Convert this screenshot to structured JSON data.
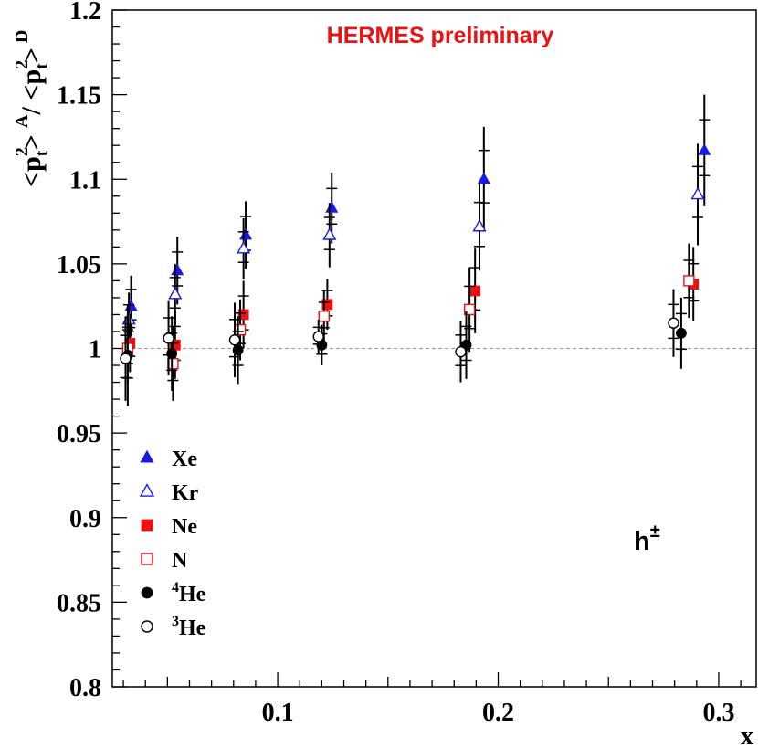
{
  "chart_data": {
    "type": "scatter",
    "title": "HERMES preliminary",
    "title_color": "#ee1111",
    "annotation": "h",
    "annotation_sup": "±",
    "ylabel": {
      "parts": [
        "<p",
        "2",
        "t",
        "> ",
        "A",
        "/ <p",
        "2",
        "t",
        ">",
        " D"
      ]
    },
    "xlabel": "x",
    "xlim": [
      0.025,
      0.317
    ],
    "ylim": [
      0.8,
      1.2
    ],
    "x_ticks": [
      {
        "value": 0.1,
        "label": "0.1"
      },
      {
        "value": 0.2,
        "label": "0.2"
      },
      {
        "value": 0.3,
        "label": "0.3"
      }
    ],
    "y_ticks": [
      {
        "value": 0.8,
        "label": "0.8"
      },
      {
        "value": 0.85,
        "label": "0.85"
      },
      {
        "value": 0.9,
        "label": "0.9"
      },
      {
        "value": 0.95,
        "label": "0.95"
      },
      {
        "value": 1.0,
        "label": "1"
      },
      {
        "value": 1.05,
        "label": "1.05"
      },
      {
        "value": 1.1,
        "label": "1.1"
      },
      {
        "value": 1.15,
        "label": "1.15"
      },
      {
        "value": 1.2,
        "label": "1.2"
      }
    ],
    "reference_line": {
      "y": 1.0,
      "style": "dashed",
      "color": "#999999"
    },
    "legend_placement": "lower-left",
    "series": [
      {
        "name": "Xe",
        "marker": "triangle-filled",
        "color": "#1a1ae6",
        "x": [
          0.0335,
          0.0545,
          0.0855,
          0.1245,
          0.1935,
          0.2935
        ],
        "y": [
          1.025,
          1.046,
          1.067,
          1.083,
          1.1,
          1.117
        ],
        "err": [
          0.018,
          0.02,
          0.02,
          0.021,
          0.031,
          0.033
        ]
      },
      {
        "name": "Kr",
        "marker": "triangle-open",
        "color": "#1a1ae6",
        "x": [
          0.0325,
          0.0535,
          0.0845,
          0.1235,
          0.1915,
          0.2905
        ],
        "y": [
          1.017,
          1.032,
          1.059,
          1.067,
          1.072,
          1.091
        ],
        "err": [
          0.016,
          0.018,
          0.018,
          0.019,
          0.026,
          0.03
        ]
      },
      {
        "name": "Ne",
        "marker": "square-filled",
        "color": "#ee1111",
        "x": [
          0.033,
          0.0535,
          0.0845,
          0.1225,
          0.1895,
          0.2885
        ],
        "y": [
          1.003,
          1.002,
          1.02,
          1.026,
          1.034,
          1.038
        ],
        "err": [
          0.017,
          0.02,
          0.02,
          0.015,
          0.025,
          0.022
        ]
      },
      {
        "name": "N",
        "marker": "square-open",
        "color": "#ee1111",
        "x": [
          0.032,
          0.0525,
          0.083,
          0.121,
          0.187,
          0.2865
        ],
        "y": [
          1.0,
          0.991,
          1.011,
          1.019,
          1.023,
          1.04
        ],
        "err": [
          0.02,
          0.022,
          0.018,
          0.015,
          0.025,
          0.022
        ]
      },
      {
        "name": "4He",
        "label_sup": "4",
        "label_main": "He",
        "marker": "circle-filled",
        "color": "#000000",
        "x": [
          0.032,
          0.052,
          0.082,
          0.12,
          0.1855,
          0.283
        ],
        "y": [
          0.996,
          0.997,
          0.999,
          1.002,
          1.002,
          1.009
        ],
        "err": [
          0.03,
          0.022,
          0.02,
          0.012,
          0.02,
          0.021
        ]
      },
      {
        "name": "3He",
        "label_sup": "3",
        "label_main": "He",
        "marker": "circle-open",
        "color": "#000000",
        "x": [
          0.031,
          0.0505,
          0.0805,
          0.1185,
          0.183,
          0.2795
        ],
        "y": [
          0.994,
          1.006,
          1.005,
          1.007,
          0.998,
          1.015
        ],
        "err": [
          0.025,
          0.022,
          0.022,
          0.01,
          0.018,
          0.02
        ]
      }
    ]
  }
}
